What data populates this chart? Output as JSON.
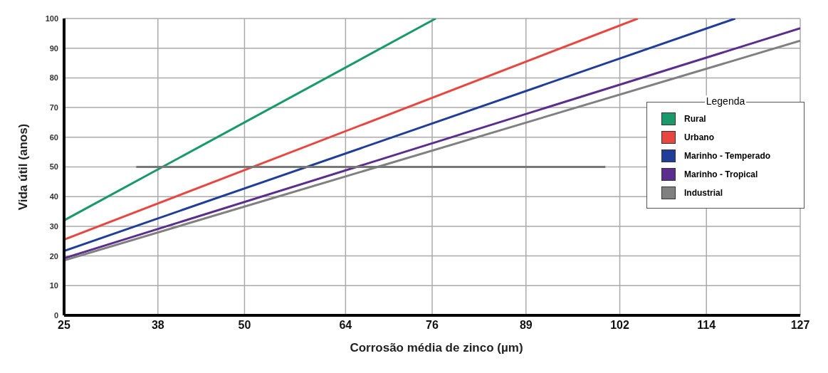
{
  "chart_data": {
    "type": "line",
    "xlabel": "Corrosão média de zinco (µm)",
    "ylabel": "Vida útil (anos)",
    "legend_title": "Legenda",
    "legend": "right",
    "grid": true,
    "marker": "none",
    "line_style": "solid",
    "xlim": [
      25,
      127
    ],
    "xticks": [
      25,
      38,
      50,
      64,
      76,
      89,
      102,
      114,
      127
    ],
    "ylim": [
      0,
      100
    ],
    "yticks": [
      0,
      10,
      20,
      30,
      40,
      50,
      60,
      70,
      80,
      90,
      100
    ],
    "series": [
      {
        "name": "Rural",
        "color": "#1a9a6a",
        "x": [
          25,
          76.5
        ],
        "values": [
          32,
          100
        ]
      },
      {
        "name": "Urbano",
        "color": "#e8473f",
        "x": [
          25,
          104.5
        ],
        "values": [
          25.5,
          100
        ]
      },
      {
        "name": "Marinho - Temperado",
        "color": "#1f3d99",
        "x": [
          25,
          118
        ],
        "values": [
          21.7,
          100
        ]
      },
      {
        "name": "Marinho - Tropical",
        "color": "#5b2d8e",
        "x": [
          25,
          127
        ],
        "values": [
          19.2,
          96.7
        ]
      },
      {
        "name": "Industrial",
        "color": "#808080",
        "x": [
          25,
          127
        ],
        "values": [
          18.5,
          92.5
        ]
      },
      {
        "color": "#777777",
        "x": [
          35,
          100
        ],
        "values": [
          50,
          50
        ]
      }
    ]
  }
}
